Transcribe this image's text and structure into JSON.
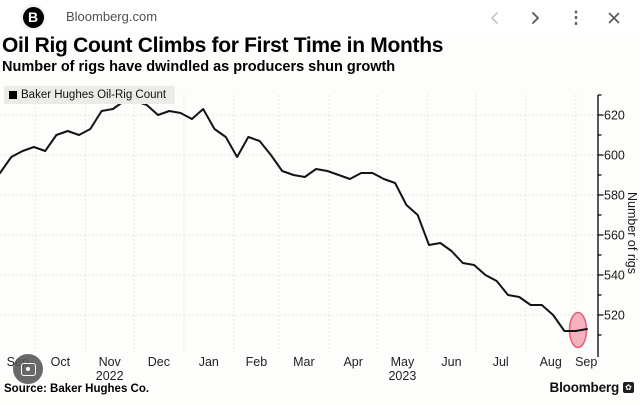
{
  "header": {
    "site_label": "Bloomberg.com",
    "favicon_letter": "B",
    "icons": [
      {
        "name": "back-chevron",
        "enabled": false
      },
      {
        "name": "forward-chevron",
        "enabled": true
      },
      {
        "name": "more-options",
        "enabled": true
      },
      {
        "name": "close",
        "enabled": true
      }
    ]
  },
  "title": "Oil Rig Count Climbs for First Time in Months",
  "subtitle": "Number of rigs have dwindled as producers shun growth",
  "legend": {
    "label": "Baker Hughes Oil-Rig Count",
    "swatch_color": "#000000"
  },
  "source": "Source: Baker Hughes Co.",
  "brand": {
    "name": "Bloomberg"
  },
  "colors": {
    "line": "#141414",
    "highlight_fill": "#f3a0b1",
    "highlight_stroke": "#e06078",
    "grid": "#e0e0dd",
    "legend_bg": "#ebebe8"
  },
  "chart_data": {
    "type": "line",
    "title": "Baker Hughes Oil-Rig Count",
    "xlabel": "",
    "ylabel": "Number of rigs",
    "ylim": [
      500,
      630
    ],
    "yticks": [
      520,
      540,
      560,
      580,
      600,
      620
    ],
    "y_minor_step": 10,
    "grid": "dotted, horizontal at major y ticks and vertical at month boundaries",
    "legend_position": "top-left",
    "x_unit": "weekly observations, Sep 2022 - Sep 2023",
    "months": [
      {
        "label": "Sep"
      },
      {
        "label": "Oct"
      },
      {
        "label": "Nov",
        "year": "2022"
      },
      {
        "label": "Dec"
      },
      {
        "label": "Jan"
      },
      {
        "label": "Feb"
      },
      {
        "label": "Mar"
      },
      {
        "label": "Apr"
      },
      {
        "label": "May",
        "year": "2023"
      },
      {
        "label": "Jun"
      },
      {
        "label": "Jul"
      },
      {
        "label": "Aug"
      },
      {
        "label": "Sep"
      }
    ],
    "values": [
      591,
      599,
      602,
      604,
      602,
      610,
      612,
      610,
      613,
      622,
      623,
      627,
      627,
      625,
      620,
      622,
      621,
      618,
      623,
      613,
      609,
      599,
      609,
      607,
      600,
      592,
      590,
      589,
      593,
      592,
      590,
      588,
      591,
      591,
      588,
      586,
      575,
      570,
      555,
      556,
      552,
      546,
      545,
      540,
      537,
      530,
      529,
      525,
      525,
      520,
      512,
      512,
      513
    ],
    "annotation": {
      "shape": "ellipse-highlight",
      "note": "pink ellipse circling the final small uptick",
      "center_week": 51.2,
      "center_value": 512.5,
      "rx_weeks": 0.75,
      "ry_rigs": 8.75
    }
  }
}
